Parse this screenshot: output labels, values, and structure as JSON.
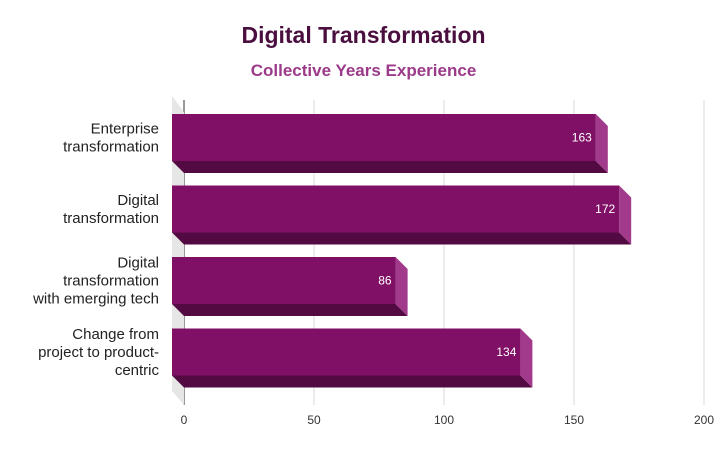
{
  "chart_data": {
    "type": "bar",
    "orientation": "horizontal",
    "title": "Digital Transformation",
    "subtitle": "Collective Years Experience",
    "categories": [
      [
        "Enterprise",
        "transformation"
      ],
      [
        "Digital",
        "transformation"
      ],
      [
        "Digital",
        "transformation",
        "with emerging tech"
      ],
      [
        "Change from",
        "project to product-",
        "centric"
      ]
    ],
    "values": [
      163,
      172,
      86,
      134
    ],
    "xlim": [
      0,
      200
    ],
    "ticks": [
      0,
      50,
      100,
      150,
      200
    ],
    "grid": true,
    "legend": "none",
    "colors": {
      "bar_front": "#801065",
      "bar_bottom": "#530a42",
      "bar_side": "#a13a8a",
      "title": "#4a0f3f",
      "subtitle": "#9c3a8a"
    }
  }
}
